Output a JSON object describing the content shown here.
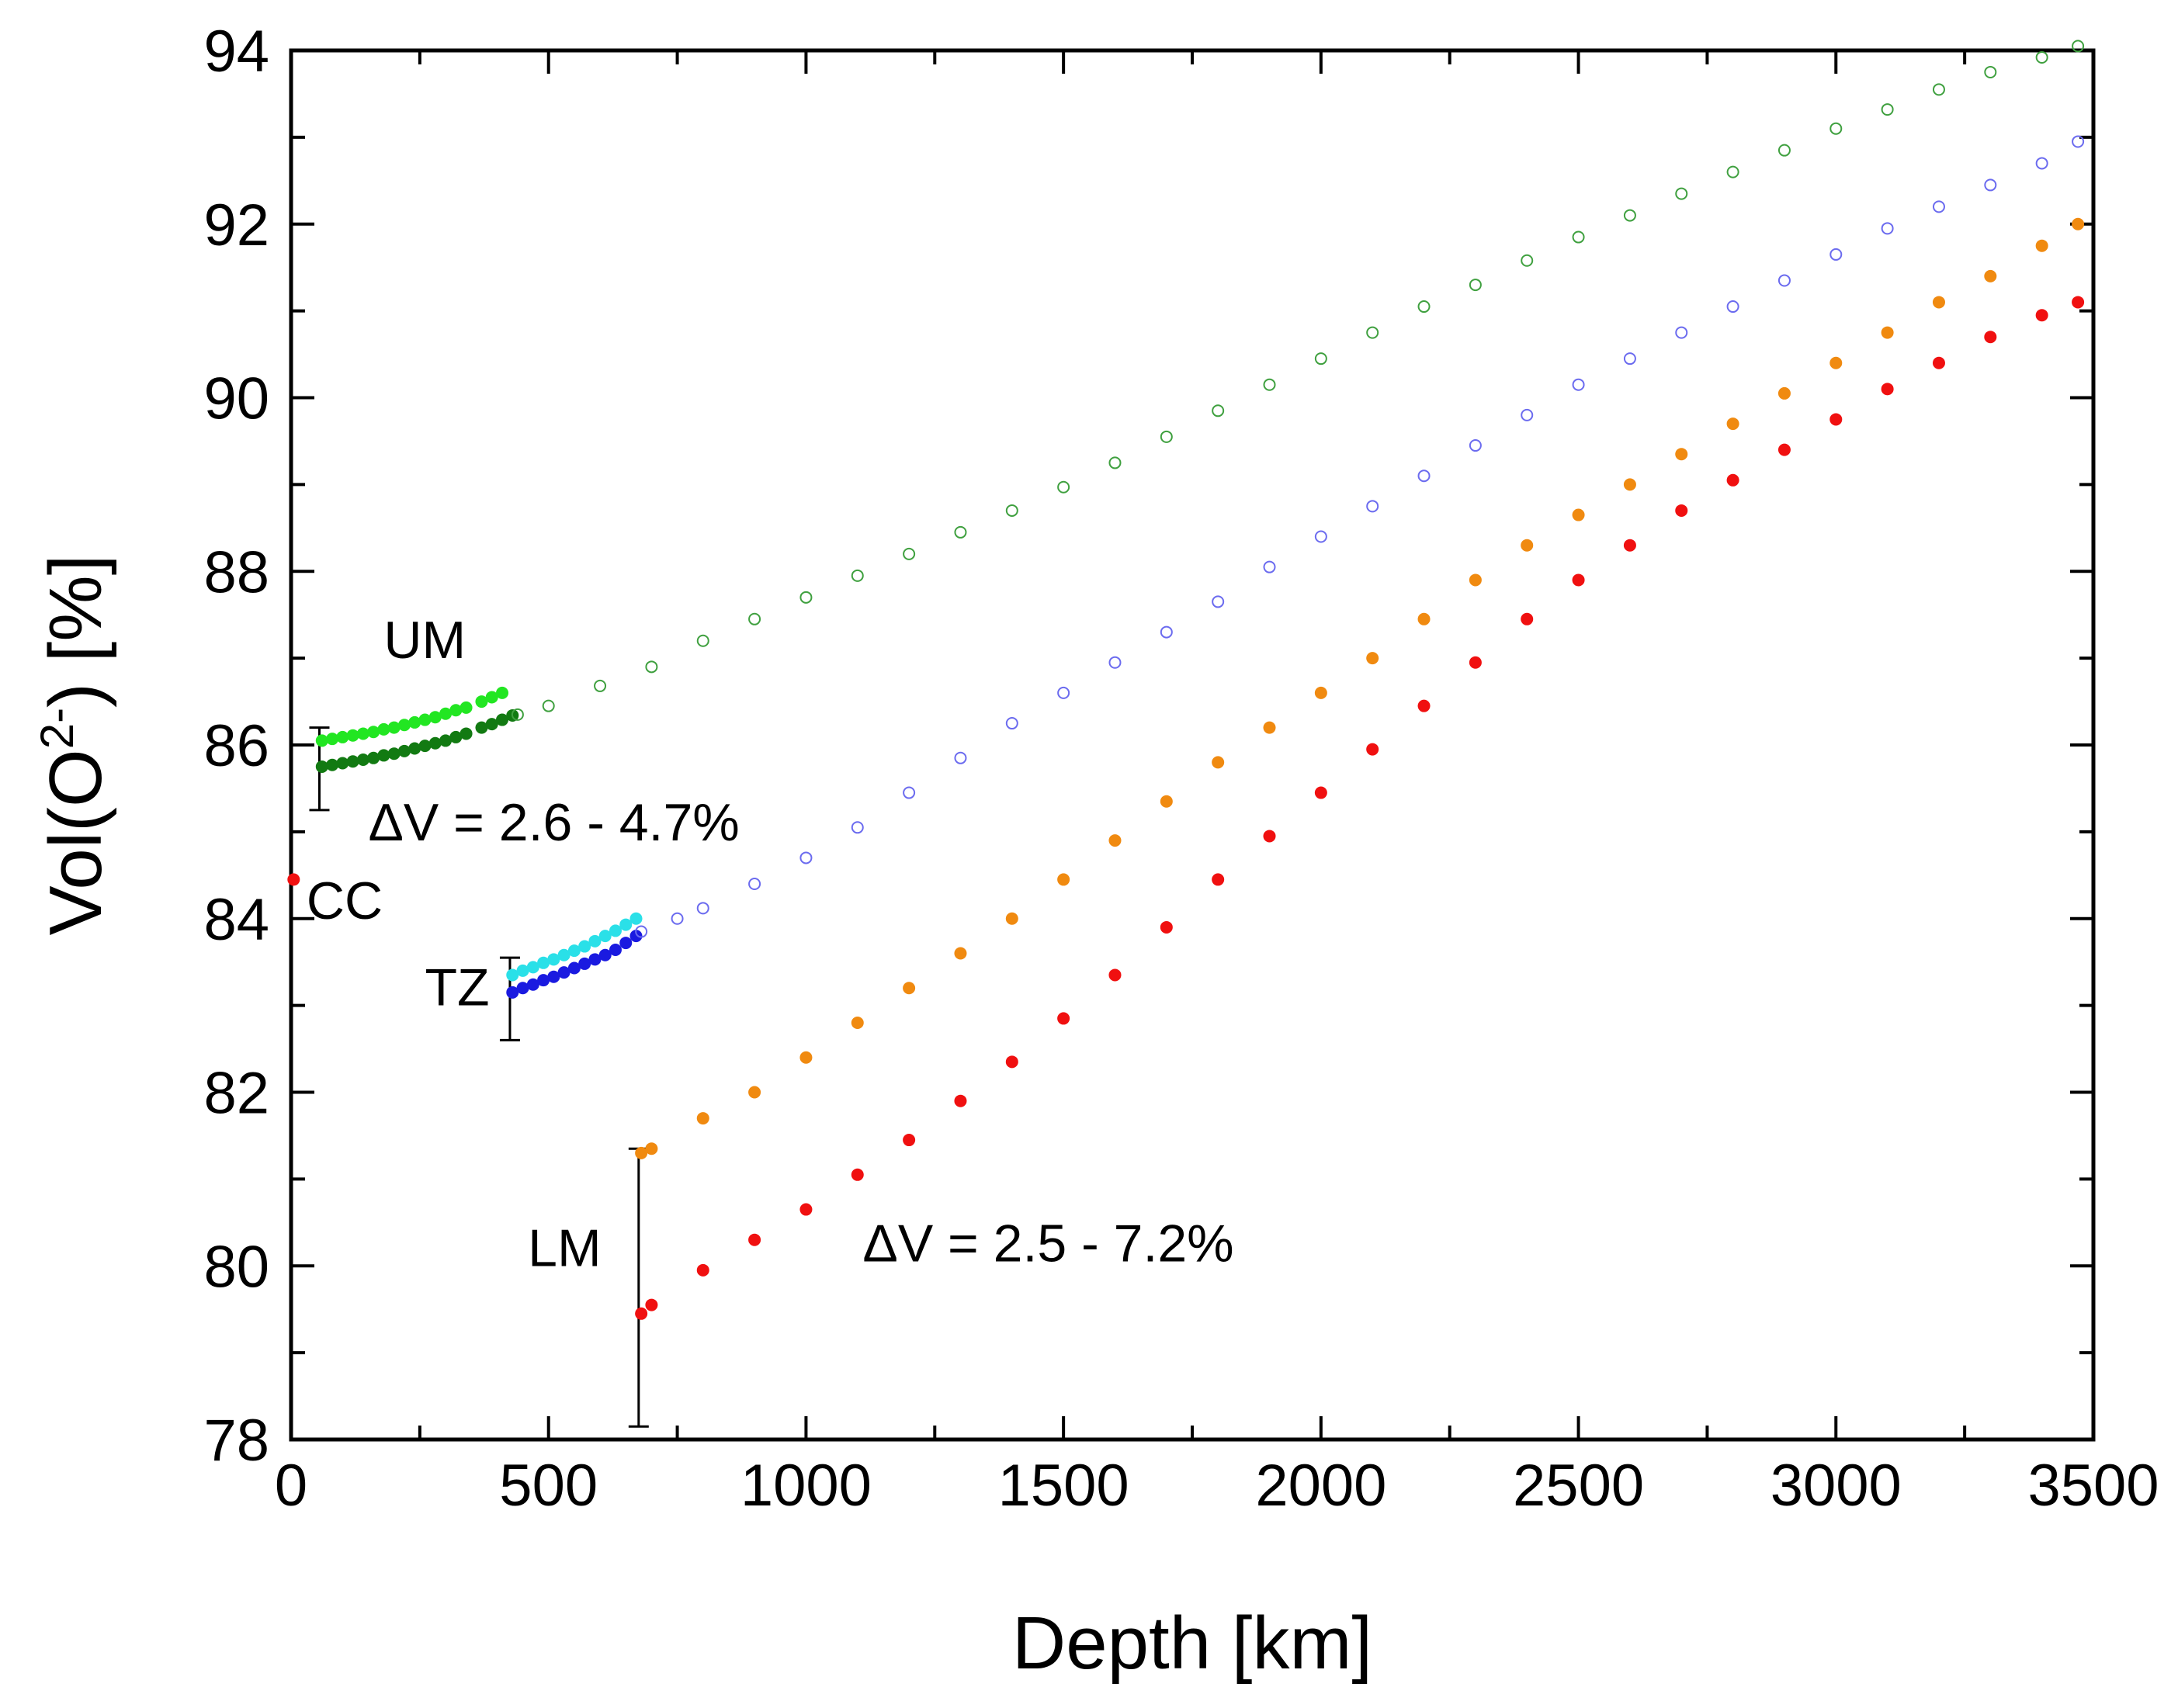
{
  "chart_data": {
    "type": "scatter",
    "title": "",
    "xlabel": "Depth [km]",
    "ylabel_parts": [
      "Vol(O",
      "2-",
      ") [%]"
    ],
    "xlim": [
      0,
      3500
    ],
    "ylim": [
      78,
      94
    ],
    "x_ticks": [
      0,
      500,
      1000,
      1500,
      2000,
      2500,
      3000,
      3500
    ],
    "x_tick_labels": [
      "0",
      "500",
      "1000",
      "1500",
      "2000",
      "2500",
      "3000",
      "3500"
    ],
    "y_ticks": [
      78,
      80,
      82,
      84,
      86,
      88,
      90,
      92,
      94
    ],
    "y_tick_labels": [
      "78",
      "80",
      "82",
      "84",
      "86",
      "88",
      "90",
      "92",
      "94"
    ],
    "series": [
      {
        "name": "um-light",
        "color": "#22e622",
        "marker": "filled",
        "x": [
          60,
          80,
          100,
          120,
          140,
          160,
          180,
          200,
          220,
          240,
          260,
          280,
          300,
          320,
          340,
          370,
          390,
          410
        ],
        "y": [
          86.05,
          86.07,
          86.09,
          86.11,
          86.13,
          86.15,
          86.18,
          86.2,
          86.23,
          86.26,
          86.29,
          86.32,
          86.36,
          86.4,
          86.43,
          86.5,
          86.55,
          86.6
        ]
      },
      {
        "name": "um-dark",
        "color": "#127a12",
        "marker": "filled",
        "x": [
          60,
          80,
          100,
          120,
          140,
          160,
          180,
          200,
          220,
          240,
          260,
          280,
          300,
          320,
          340,
          370,
          390,
          410,
          430
        ],
        "y": [
          85.75,
          85.77,
          85.79,
          85.81,
          85.83,
          85.85,
          85.88,
          85.9,
          85.93,
          85.96,
          85.99,
          86.02,
          86.05,
          86.09,
          86.13,
          86.2,
          86.24,
          86.29,
          86.34
        ]
      },
      {
        "name": "upper-open",
        "color": "#3fa03f",
        "marker": "open",
        "x": [
          440,
          500,
          600,
          700,
          800,
          900,
          1000,
          1100,
          1200,
          1300,
          1400,
          1500,
          1600,
          1700,
          1800,
          1900,
          2000,
          2100,
          2200,
          2300,
          2400,
          2500,
          2600,
          2700,
          2800,
          2900,
          3000,
          3100,
          3200,
          3300,
          3400,
          3470
        ],
        "y": [
          86.35,
          86.45,
          86.68,
          86.9,
          87.2,
          87.45,
          87.7,
          87.95,
          88.2,
          88.45,
          88.7,
          88.97,
          89.25,
          89.55,
          89.85,
          90.15,
          90.45,
          90.75,
          91.05,
          91.3,
          91.58,
          91.85,
          92.1,
          92.35,
          92.6,
          92.85,
          93.1,
          93.32,
          93.55,
          93.75,
          93.92,
          94.05
        ]
      },
      {
        "name": "tz-cyan",
        "color": "#2ae0e8",
        "marker": "filled",
        "x": [
          430,
          450,
          470,
          490,
          510,
          530,
          550,
          570,
          590,
          610,
          630,
          650,
          670
        ],
        "y": [
          83.35,
          83.4,
          83.44,
          83.49,
          83.53,
          83.58,
          83.63,
          83.68,
          83.74,
          83.8,
          83.86,
          83.93,
          84.0
        ]
      },
      {
        "name": "tz-blue",
        "color": "#1a1ae0",
        "marker": "filled",
        "x": [
          430,
          450,
          470,
          490,
          510,
          530,
          550,
          570,
          590,
          610,
          630,
          650,
          670
        ],
        "y": [
          83.15,
          83.2,
          83.24,
          83.29,
          83.33,
          83.38,
          83.43,
          83.48,
          83.53,
          83.58,
          83.64,
          83.72,
          83.8
        ]
      },
      {
        "name": "lower-open-blue",
        "color": "#6b6bef",
        "marker": "open",
        "x": [
          680,
          750,
          800,
          900,
          1000,
          1100,
          1200,
          1300,
          1400,
          1500,
          1600,
          1700,
          1800,
          1900,
          2000,
          2100,
          2200,
          2300,
          2400,
          2500,
          2600,
          2700,
          2800,
          2900,
          3000,
          3100,
          3200,
          3300,
          3400,
          3470
        ],
        "y": [
          83.85,
          84.0,
          84.12,
          84.4,
          84.7,
          85.05,
          85.45,
          85.85,
          86.25,
          86.6,
          86.95,
          87.3,
          87.65,
          88.05,
          88.4,
          88.75,
          89.1,
          89.45,
          89.8,
          90.15,
          90.45,
          90.75,
          91.05,
          91.35,
          91.65,
          91.95,
          92.2,
          92.45,
          92.7,
          92.95
        ]
      },
      {
        "name": "lm-orange",
        "color": "#f08a10",
        "marker": "filled",
        "x": [
          680,
          700,
          800,
          900,
          1000,
          1100,
          1200,
          1300,
          1400,
          1500,
          1600,
          1700,
          1800,
          1900,
          2000,
          2100,
          2200,
          2300,
          2400,
          2500,
          2600,
          2700,
          2800,
          2900,
          3000,
          3100,
          3200,
          3300,
          3400,
          3470
        ],
        "y": [
          81.3,
          81.35,
          81.7,
          82.0,
          82.4,
          82.8,
          83.2,
          83.6,
          84.0,
          84.45,
          84.9,
          85.35,
          85.8,
          86.2,
          86.6,
          87.0,
          87.45,
          87.9,
          88.3,
          88.65,
          89.0,
          89.35,
          89.7,
          90.05,
          90.4,
          90.75,
          91.1,
          91.4,
          91.75,
          92.0
        ]
      },
      {
        "name": "lm-red",
        "color": "#f01010",
        "marker": "filled",
        "x": [
          680,
          700,
          800,
          900,
          1000,
          1100,
          1200,
          1300,
          1400,
          1500,
          1600,
          1700,
          1800,
          1900,
          2000,
          2100,
          2200,
          2300,
          2400,
          2500,
          2600,
          2700,
          2800,
          2900,
          3000,
          3100,
          3200,
          3300,
          3400,
          3470
        ],
        "y": [
          79.45,
          79.55,
          79.95,
          80.3,
          80.65,
          81.05,
          81.45,
          81.9,
          82.35,
          82.85,
          83.35,
          83.9,
          84.45,
          84.95,
          85.45,
          85.95,
          86.45,
          86.95,
          87.45,
          87.9,
          88.3,
          88.7,
          89.05,
          89.4,
          89.75,
          90.1,
          90.4,
          90.7,
          90.95,
          91.1
        ]
      },
      {
        "name": "cc",
        "color": "#f01010",
        "marker": "filled",
        "x": [
          5
        ],
        "y": [
          84.45
        ]
      }
    ],
    "error_bars": [
      {
        "name": "um-range",
        "x": 55,
        "y_low": 85.25,
        "y_high": 86.2
      },
      {
        "name": "tz-range",
        "x": 425,
        "y_low": 82.6,
        "y_high": 83.55
      },
      {
        "name": "lm-range",
        "x": 675,
        "y_low": 78.15,
        "y_high": 81.35
      }
    ],
    "annotations": [
      {
        "name": "um",
        "text": "UM",
        "x": 180,
        "y": 87.0
      },
      {
        "name": "delta-um",
        "text": "ΔV = 2.6 - 4.7%",
        "x": 150,
        "y": 84.9
      },
      {
        "name": "cc",
        "text": "CC",
        "x": 30,
        "y": 84.0
      },
      {
        "name": "tz",
        "text": "TZ",
        "x": 260,
        "y": 83.0
      },
      {
        "name": "lm",
        "text": "LM",
        "x": 460,
        "y": 80.0
      },
      {
        "name": "delta-lm",
        "text": "ΔV = 2.5 - 7.2%",
        "x": 1110,
        "y": 80.05
      }
    ]
  }
}
